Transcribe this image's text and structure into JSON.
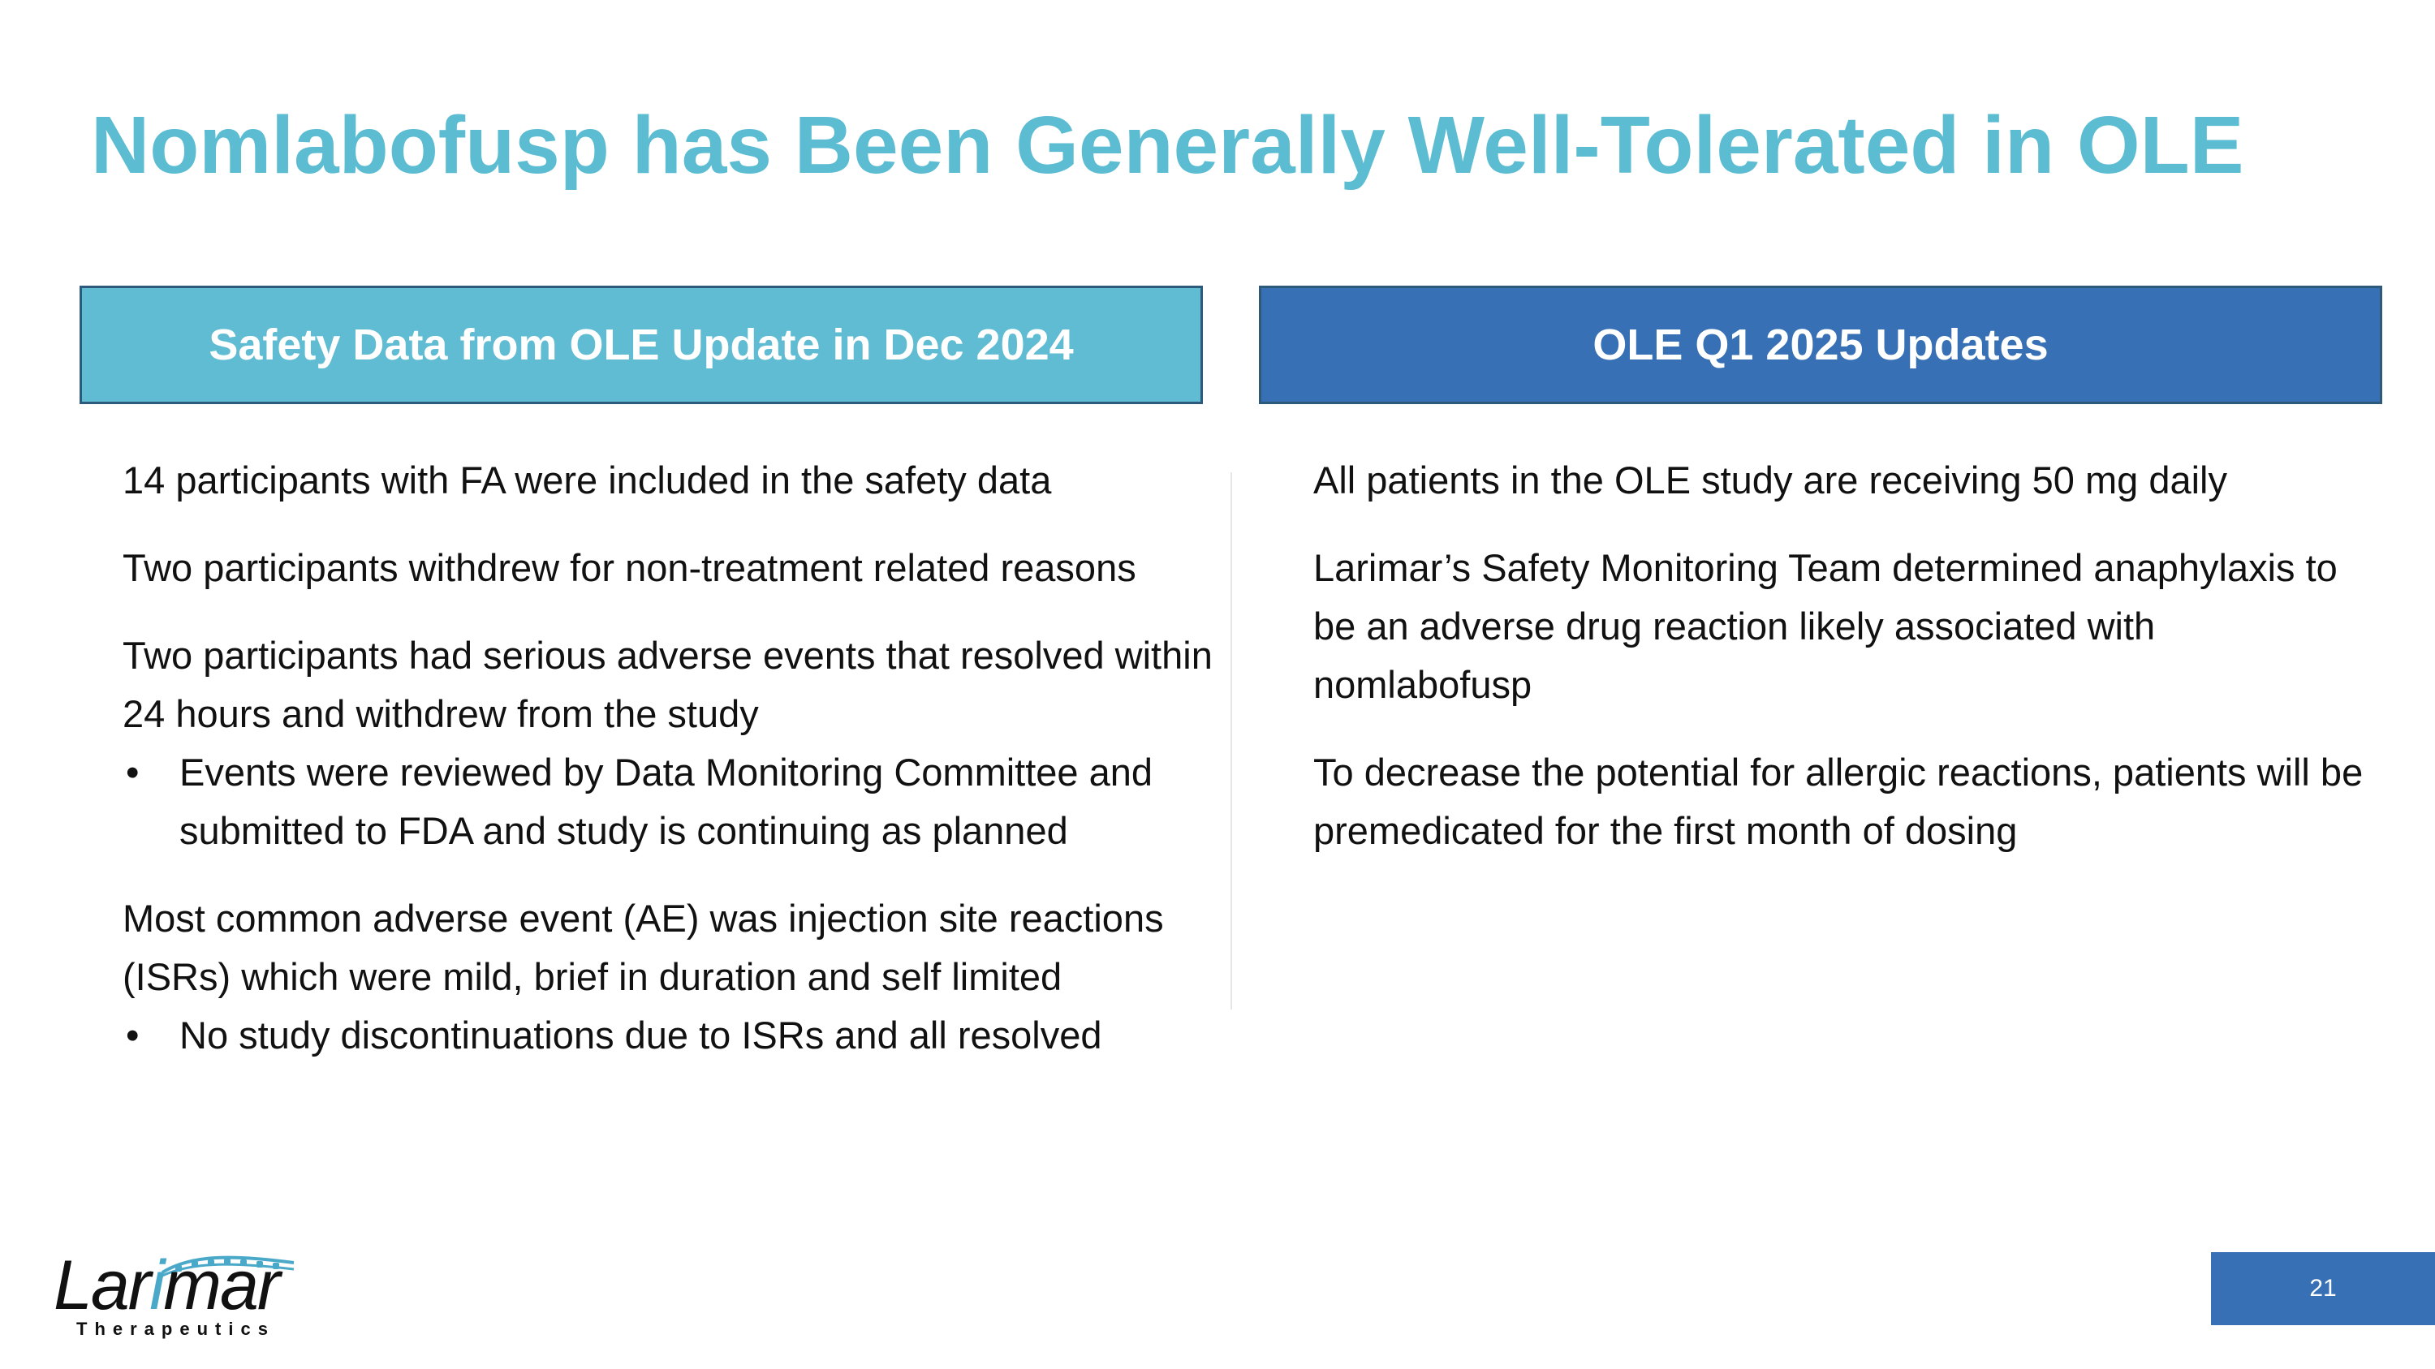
{
  "slide": {
    "title": "Nomlabofusp has Been Generally Well-Tolerated in OLE",
    "page_number": "21"
  },
  "left_panel": {
    "header": "Safety Data from OLE Update in Dec 2024",
    "items": [
      "14 participants with FA were included in the safety data",
      "Two participants withdrew for non-treatment related reasons",
      "Two participants had serious adverse events that resolved within 24 hours and withdrew from the study",
      "Most common adverse event (AE) was injection site reactions (ISRs) which were mild, brief in duration and self limited"
    ],
    "bullets": [
      "Events were reviewed by Data Monitoring Committee and submitted to FDA and study is continuing as planned",
      "No study discontinuations due to ISRs and all resolved"
    ]
  },
  "right_panel": {
    "header": "OLE Q1 2025 Updates",
    "items": [
      "All patients in the OLE study are receiving 50 mg daily",
      "Larimar’s Safety Monitoring Team determined anaphylaxis to be an adverse drug reaction likely associated with nomlabofusp",
      "To decrease the potential for allergic reactions, patients will be premedicated for the first month of dosing"
    ]
  },
  "logo": {
    "word_start": "Lar",
    "word_accent": "i",
    "word_end": "mar",
    "subtitle": "Therapeutics",
    "accent_color": "#4aa9c9"
  },
  "colors": {
    "title": "#5bbcd2",
    "left_header_bg": "#60bcd2",
    "right_header_bg": "#3770b5",
    "page_number_bg": "#3770b5"
  }
}
